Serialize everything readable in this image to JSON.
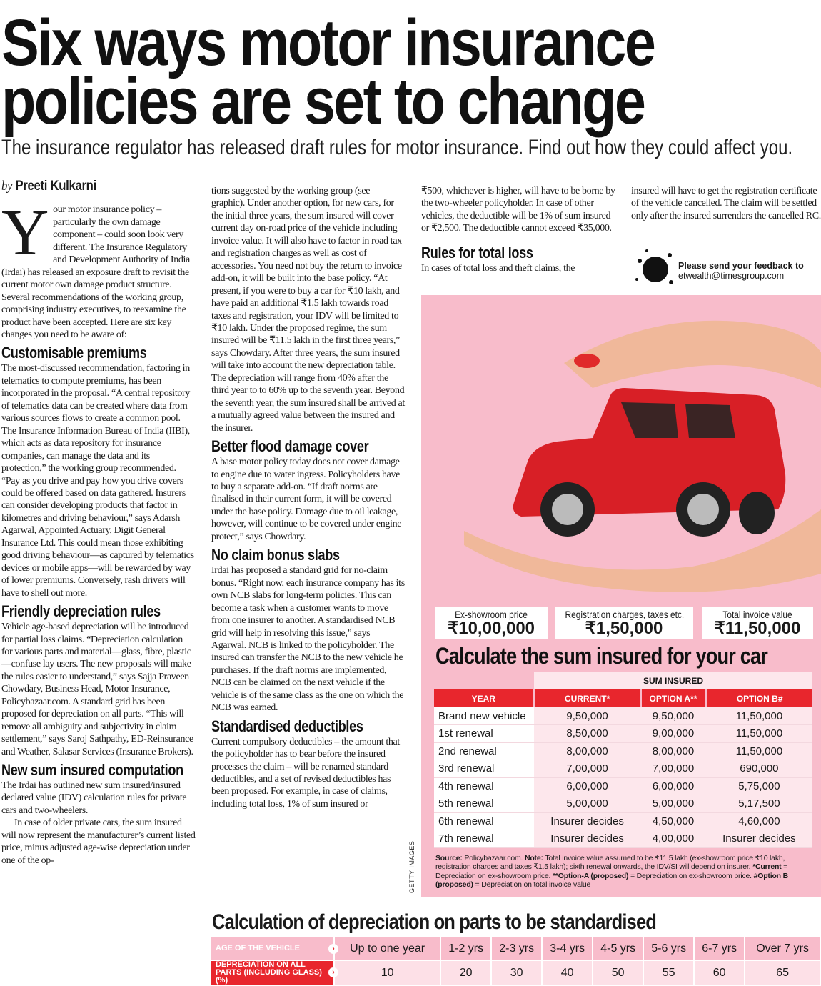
{
  "headline": [
    "Six ways motor insurance",
    "policies are set to change"
  ],
  "subtitle": "The insurance regulator has released draft rules for motor insurance. Find out how they could affect you.",
  "byline": {
    "prefix": "by",
    "author": "Preeti Kulkarni"
  },
  "col1": {
    "dropcap": "Y",
    "intro": "our motor insurance policy – particularly the own damage component – could soon look very different. The Insurance Regulatory and Development Authority of India (Irdai) has released an exposure draft to revisit the current motor own damage product structure. Several recommendations of the working group, comprising industry executives, to reexamine the product have been accepted. Here are six key changes you need to be aware of:",
    "h1": "Customisable premiums",
    "p1": "The most-discussed recommendation, factoring in telematics to compute premiums, has been incorporated in the proposal. “A central repository of telematics data can be created where data from various sources flows to create a common pool. The Insurance Information Bureau of India (IIBI), which acts as data repository for insurance companies, can manage the data and its protection,” the working group recommended. “Pay as you drive and pay how you drive covers could be offered based on data gathered. Insurers can consider developing products that factor in kilometres and driving behaviour,” says Adarsh Agarwal, Appointed Actuary, Digit General Insurance Ltd. This could mean those exhibiting good driving behaviour—as captured by telematics devices or mobile apps—will be rewarded by way of lower premiums. Conversely, rash drivers will have to shell out more.",
    "h2": "Friendly depreciation rules",
    "p2": "Vehicle age-based depreciation will be introduced for partial loss claims. “Depreciation calculation for various parts and material—glass, fibre, plastic—confuse lay users. The new proposals will make the rules easier to understand,” says Sajja Praveen Chowdary, Business Head, Motor Insurance, Policybazaar.com. A standard grid has been proposed for depreciation on all parts. “This will remove all ambiguity and subjectivity in claim settlement,” says Saroj Sathpathy, ED-Reinsurance and Weather, Salasar Services (Insurance Brokers).",
    "h3": "New sum insured computation",
    "p3": "The Irdai has outlined new sum insured/insured declared value (IDV) calculation rules for private cars and two-wheelers.",
    "p4": "In case of older private cars, the sum insured will now represent the manufacturer’s current listed price, minus adjusted age-wise depreciation under one of the op-"
  },
  "col2": {
    "p1": "tions suggested by the working group (see graphic). Under another option, for new cars, for the initial three years, the sum insured will cover current day on-road price of the vehicle including invoice value. It will also have to factor in road tax and registration charges as well as cost of accessories. You need not buy the return to invoice add-on, it will be built into the base policy. “At present, if you were to buy a car for ₹10 lakh, and have paid an additional ₹1.5 lakh towards road taxes and registration, your IDV will be limited to ₹10 lakh. Under the proposed regime, the sum insured will be ₹11.5 lakh in the first three years,” says Chowdary. After three years, the sum insured will take into account the new depreciation table. The depreciation will range from 40% after the third year to to 60% up to the seventh year. Beyond the seventh year, the sum insured shall be arrived at a mutually agreed value between the insured and the insurer.",
    "h1": "Better flood damage cover",
    "p2": "A base motor policy today does not cover damage to engine due to water ingress. Policyholders have to buy a separate add-on. “If draft norms are finalised in their current form, it will be covered under the base policy. Damage due to oil leakage, however, will continue to be covered under engine protect,” says Chowdary.",
    "h2": "No claim bonus slabs",
    "p3": "Irdai has proposed a standard grid for no-claim bonus. “Right now, each insurance company has its own NCB slabs for long-term policies. This can become a task when a customer wants to move from one insurer to another. A standardised NCB grid will help in resolving this issue,” says Agarwal. NCB is linked to the policyholder. The insured can transfer the NCB to the new vehicle he purchases. If the draft norms are implemented, NCB can be claimed on the next vehicle if the vehicle is of the same class as the one on which the NCB was earned.",
    "h3": "Standardised deductibles",
    "p4": "Current compulsory deductibles – the amount that the policyholder has to bear before the insured processes the claim – will be renamed standard deductibles, and a set of revised deductibles has been proposed. For example, in case of claims, including total loss, 1% of sum insured or"
  },
  "col3": {
    "p1": "₹500, whichever is higher, will have to be borne by the two-wheeler policyholder. In case of other vehicles, the deductible will be 1% of sum insured or ₹2,500. The deductible cannot exceed ₹35,000.",
    "h1": "Rules for total loss",
    "p2": "In cases of total loss and theft claims, the"
  },
  "col4": {
    "p1": "insured will have to get the registration certificate of the vehicle cancelled. The claim will be settled only after the insured surrenders the cancelled RC."
  },
  "feedback": {
    "line1": "Please send your feedback to",
    "email": "etwealth@timesgroup.com"
  },
  "credit": "GETTY IMAGES",
  "price_boxes": [
    {
      "label": "Ex-showroom price",
      "value": "₹10,00,000"
    },
    {
      "label": "Registration charges, taxes etc.",
      "value": "₹1,50,000"
    },
    {
      "label": "Total invoice value",
      "value": "₹11,50,000"
    }
  ],
  "sum_table": {
    "title": "Calculate the sum insured for your car",
    "group_header": "SUM INSURED",
    "headers": [
      "YEAR",
      "CURRENT*",
      "OPTION A**",
      "OPTION B#"
    ],
    "rows": [
      [
        "Brand new vehicle",
        "9,50,000",
        "9,50,000",
        "11,50,000"
      ],
      [
        "1st renewal",
        "8,50,000",
        "9,00,000",
        "11,50,000"
      ],
      [
        "2nd renewal",
        "8,00,000",
        "8,00,000",
        "11,50,000"
      ],
      [
        "3rd renewal",
        "7,00,000",
        "7,00,000",
        "690,000"
      ],
      [
        "4th renewal",
        "6,00,000",
        "6,00,000",
        "5,75,000"
      ],
      [
        "5th renewal",
        "5,00,000",
        "5,00,000",
        "5,17,500"
      ],
      [
        "6th renewal",
        "Insurer decides",
        "4,50,000",
        "4,60,000"
      ],
      [
        "7th renewal",
        "Insurer decides",
        "4,00,000",
        "Insurer decides"
      ]
    ],
    "note": {
      "source_label": "Source:",
      "source": " Policybazaar.com. ",
      "note_label": "Note:",
      "note": " Total invoice value assumed to be ₹11.5 lakh (ex-showroom price ₹10 lakh, registration charges and taxes ₹1.5 lakh); sixth renewal onwards, the IDV/SI will depend on insurer. ",
      "current_label": "*Current",
      "current": " = Depreciation on ex-showroom price. ",
      "a_label": "**Option-A (proposed)",
      "a": " = Depreciation on ex-showroom price. ",
      "b_label": "#Option B (proposed)",
      "b": " = Depreciation on total invoice value"
    }
  },
  "dep_table": {
    "title": "Calculation of depreciation on parts to be standardised",
    "row1_label": "AGE OF THE VEHICLE",
    "ages": [
      "Up to one year",
      "1-2 yrs",
      "2-3 yrs",
      "3-4 yrs",
      "4-5 yrs",
      "5-6 yrs",
      "6-7 yrs",
      "Over 7 yrs"
    ],
    "row2_label": "DEPRECIATION ON ALL PARTS (INCLUDING GLASS) (%)",
    "values": [
      "10",
      "20",
      "30",
      "40",
      "50",
      "55",
      "60",
      "65"
    ]
  },
  "colors": {
    "accent_red": "#e8262d",
    "pink": "#f8bccb",
    "light_pink": "#fde7ec"
  }
}
